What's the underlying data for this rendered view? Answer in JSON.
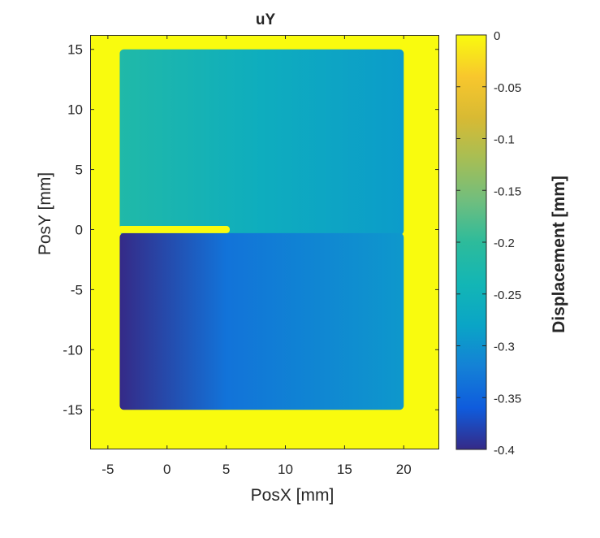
{
  "chart_data": {
    "type": "heatmap",
    "title": "uY",
    "xlabel": "PosX [mm]",
    "ylabel": "PosY [mm]",
    "colorbar_label": "Displacement [mm]",
    "colormap": "parula",
    "xlim": [
      -6.5,
      23
    ],
    "ylim": [
      -18.3,
      16.2
    ],
    "x_ticks": [
      -5,
      0,
      5,
      10,
      15,
      20
    ],
    "y_ticks": [
      15,
      10,
      5,
      0,
      -5,
      -10,
      -15
    ],
    "colorbar_ticks": [
      0,
      -0.05,
      -0.1,
      -0.15,
      -0.2,
      -0.25,
      -0.3,
      -0.35,
      -0.4
    ],
    "colorbar_range": [
      -0.4,
      0
    ],
    "background_value": 0,
    "specimen_region": {
      "x": [
        -4,
        20
      ],
      "y": [
        -15,
        15
      ]
    },
    "slit": {
      "x": [
        -4,
        5.3
      ],
      "y": [
        -0.3,
        0.3
      ]
    },
    "field_estimates": {
      "upper_part": {
        "left_x": -4,
        "left_value": -0.22,
        "right_x": 20,
        "right_value": -0.29
      },
      "lower_part": {
        "left_x": -4,
        "left_value": -0.4,
        "mid_x": 5,
        "mid_value": -0.335,
        "right_x": 20,
        "right_value": -0.295
      }
    }
  }
}
